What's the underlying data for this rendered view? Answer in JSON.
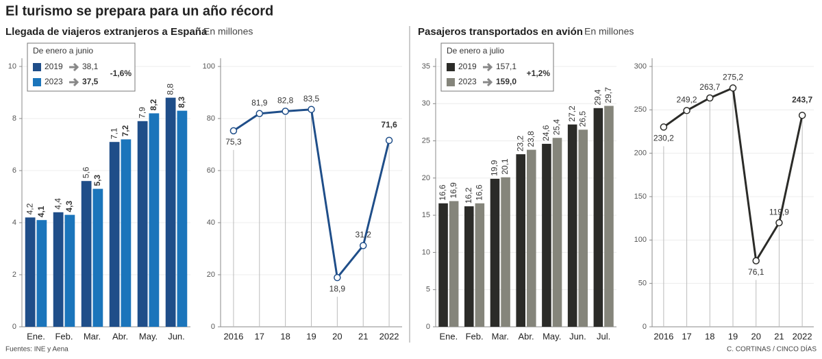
{
  "title": "El turismo se prepara para un año récord",
  "sections": [
    {
      "heading": "Llegada de viajeros extranjeros a España",
      "unit": "En millones"
    },
    {
      "heading": "Pasajeros transportados en avión",
      "unit": "En millones"
    }
  ],
  "source": "Fuentes: INE y Aena",
  "credit": "C. CORTINAS / CINCO DÍAS",
  "chart_data": [
    {
      "type": "bar",
      "categories": [
        "Ene.",
        "Feb.",
        "Mar.",
        "Abr.",
        "May.",
        "Jun."
      ],
      "series": [
        {
          "name": "2019",
          "color": "#1f4e89",
          "values": [
            4.2,
            4.4,
            5.6,
            7.1,
            7.9,
            8.8
          ],
          "value_labels": [
            "4,2",
            "4,4",
            "5,6",
            "7,1",
            "7,9",
            "8,8"
          ]
        },
        {
          "name": "2023",
          "color": "#1b75bb",
          "values": [
            4.1,
            4.3,
            5.3,
            7.2,
            8.2,
            8.3
          ],
          "value_labels": [
            "4,1",
            "4,3",
            "5,3",
            "7,2",
            "8,2",
            "8,3"
          ]
        }
      ],
      "legend": {
        "title": "De enero a junio",
        "totals": [
          "38,1",
          "37,5"
        ],
        "change": "-1,6%",
        "change_color": "#c8102e"
      },
      "ylim": [
        0,
        10
      ],
      "yticks": [
        0,
        2,
        4,
        6,
        8,
        10
      ],
      "grid": true
    },
    {
      "type": "line",
      "categories": [
        "2016",
        "17",
        "18",
        "19",
        "20",
        "21",
        "2022"
      ],
      "values": [
        75.3,
        81.9,
        82.8,
        83.5,
        18.9,
        31.2,
        71.6
      ],
      "value_labels": [
        "75,3",
        "81,9",
        "82,8",
        "83,5",
        "18,9",
        "31,2",
        "71,6"
      ],
      "color": "#1f4e89",
      "ylim": [
        0,
        100
      ],
      "yticks": [
        0,
        20,
        40,
        60,
        80,
        100
      ],
      "grid": true
    },
    {
      "type": "bar",
      "categories": [
        "Ene.",
        "Feb.",
        "Mar.",
        "Abr.",
        "May.",
        "Jun.",
        "Jul."
      ],
      "series": [
        {
          "name": "2019",
          "color": "#2b2b28",
          "values": [
            16.6,
            16.2,
            19.9,
            23.2,
            24.6,
            27.2,
            29.4
          ],
          "value_labels": [
            "16,6",
            "16,2",
            "19,9",
            "23,2",
            "24,6",
            "27,2",
            "29,4"
          ]
        },
        {
          "name": "2023",
          "color": "#85857b",
          "values": [
            16.9,
            16.6,
            20.1,
            23.8,
            25.4,
            26.5,
            29.7
          ],
          "value_labels": [
            "16,9",
            "16,6",
            "20,1",
            "23,8",
            "25,4",
            "26,5",
            "29,7"
          ]
        }
      ],
      "legend": {
        "title": "De enero a julio",
        "totals": [
          "157,1",
          "159,0"
        ],
        "change": "+1,2%",
        "change_color": "#4a9a2a"
      },
      "ylim": [
        0,
        35
      ],
      "yticks": [
        0,
        5,
        10,
        15,
        20,
        25,
        30,
        35
      ],
      "grid": true
    },
    {
      "type": "line",
      "categories": [
        "2016",
        "17",
        "18",
        "19",
        "20",
        "21",
        "2022"
      ],
      "values": [
        230.2,
        249.2,
        263.7,
        275.2,
        76.1,
        119.9,
        243.7
      ],
      "value_labels": [
        "230,2",
        "249,2",
        "263,7",
        "275,2",
        "76,1",
        "119,9",
        "243,7"
      ],
      "color": "#2b2b28",
      "ylim": [
        0,
        300
      ],
      "yticks": [
        0,
        50,
        100,
        150,
        200,
        250,
        300
      ],
      "grid": true
    }
  ]
}
